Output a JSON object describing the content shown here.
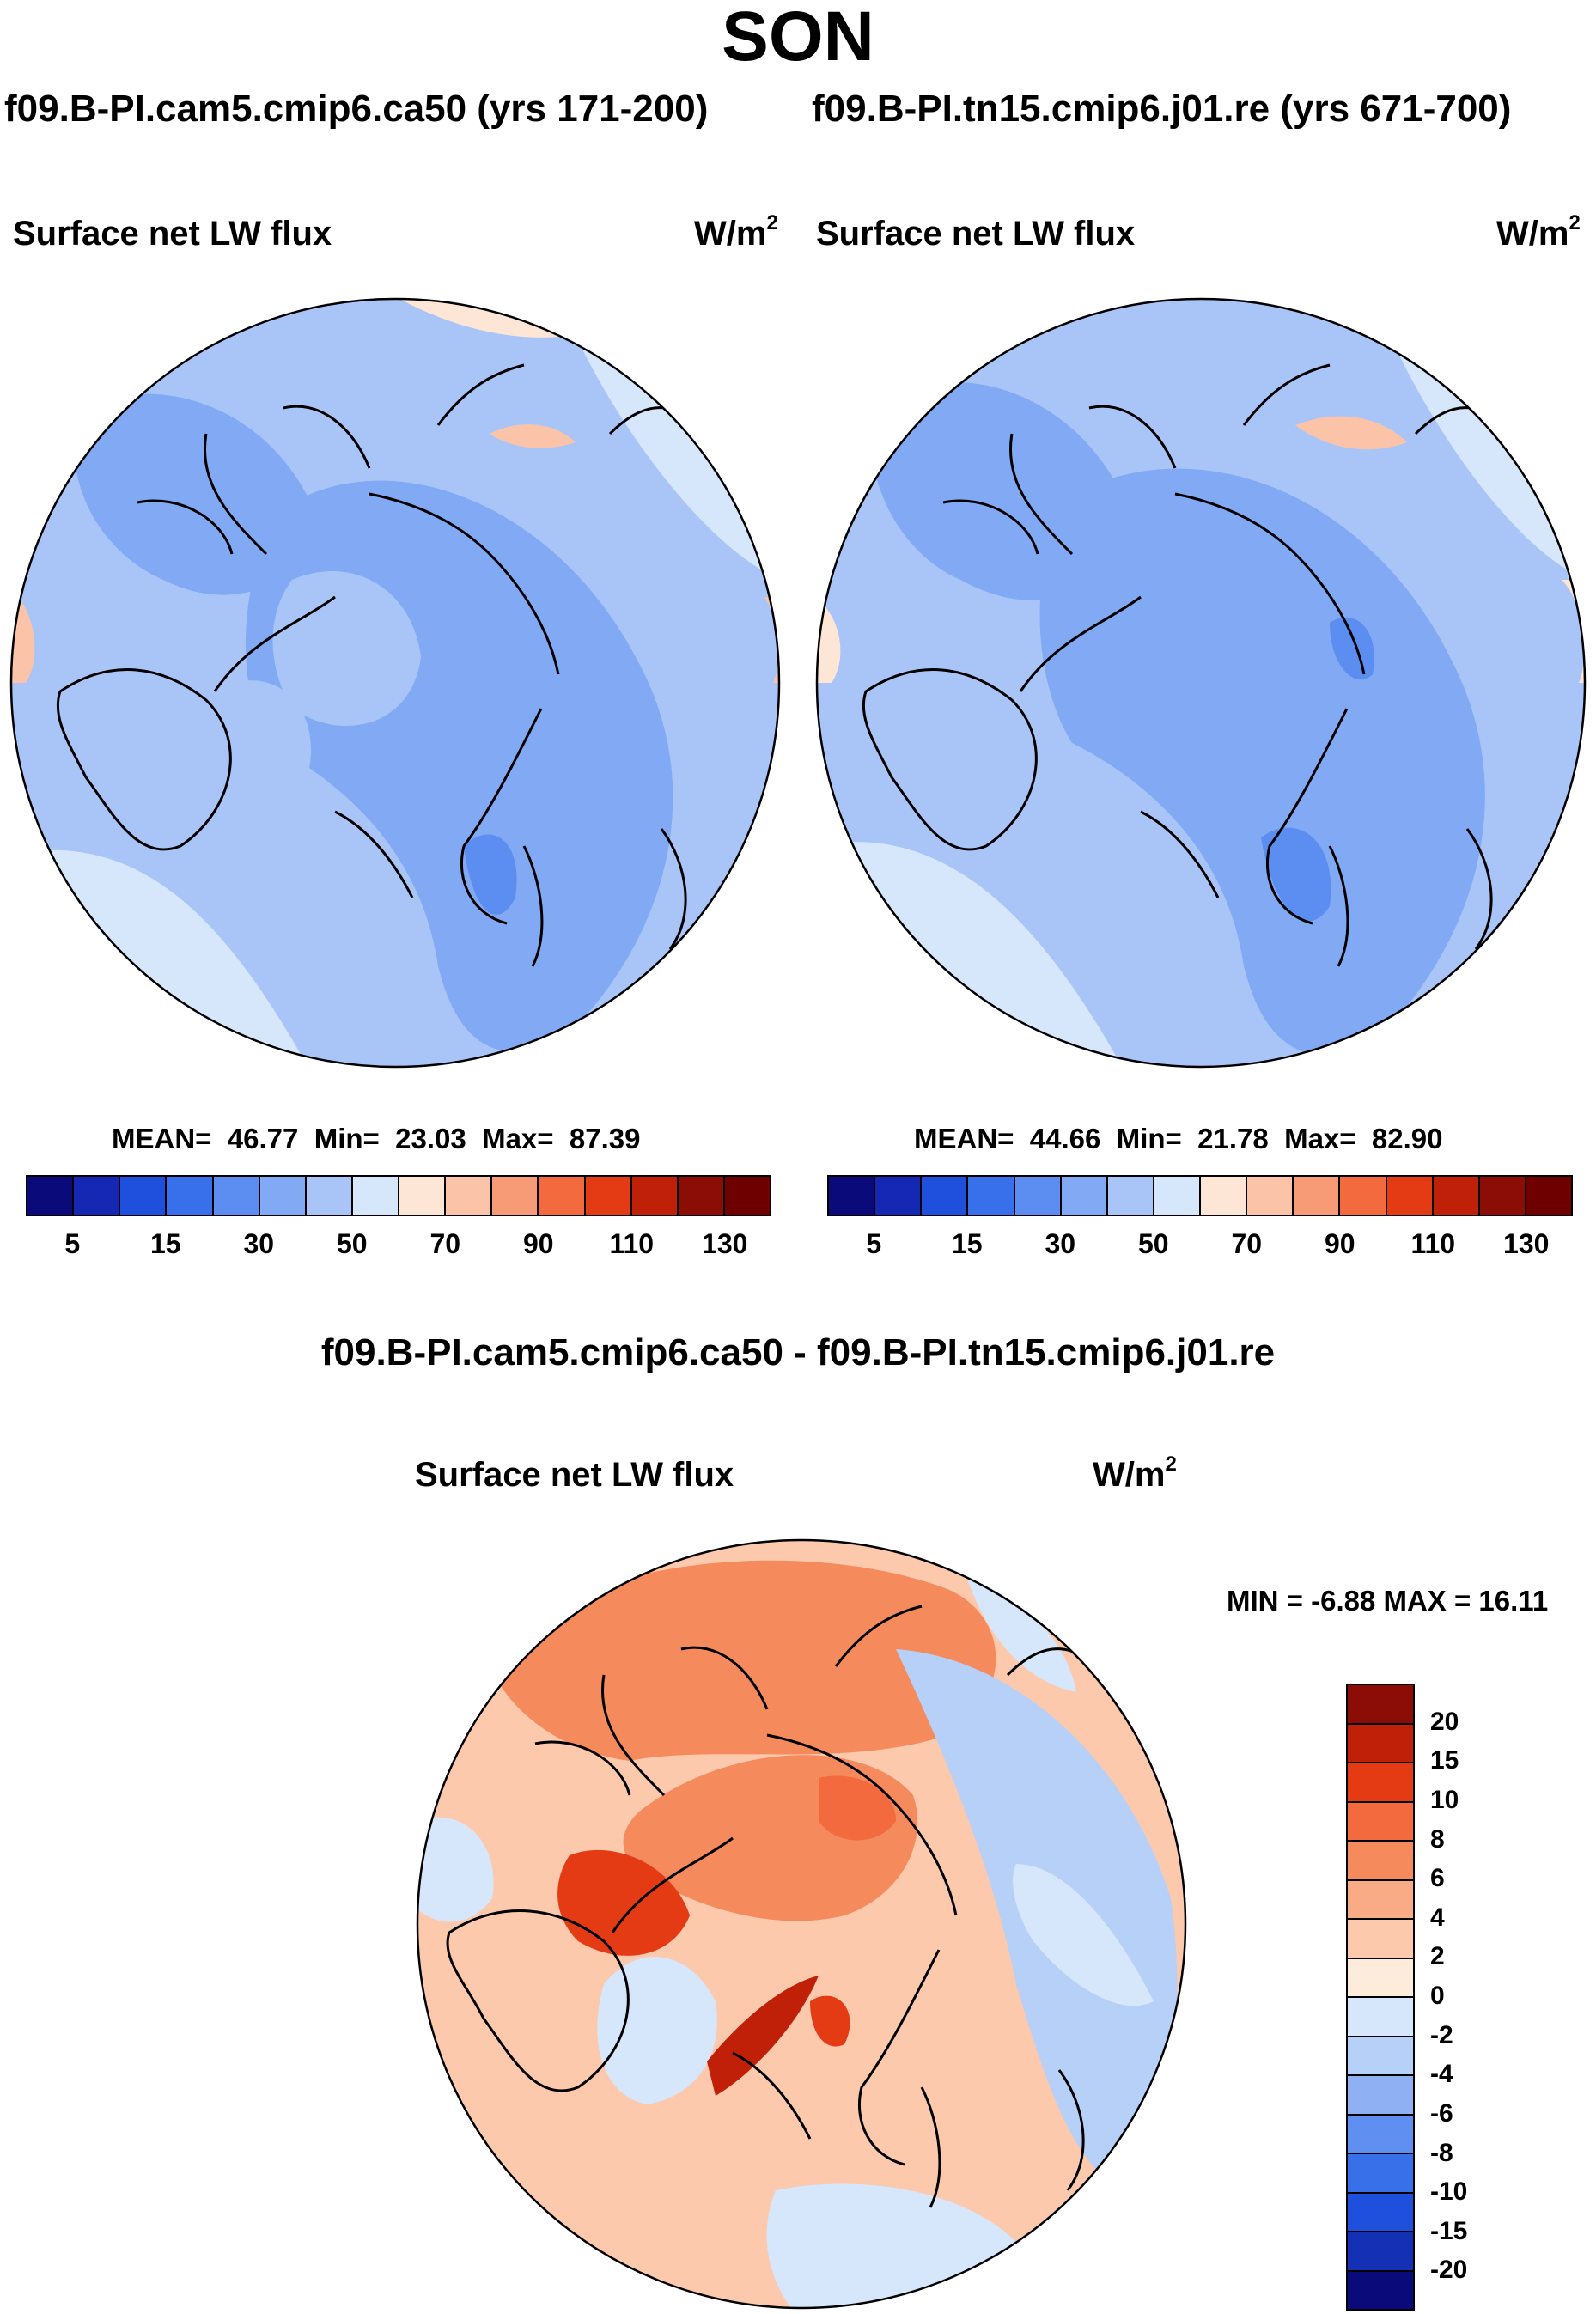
{
  "season": "SON",
  "cases": {
    "case1_label": "f09.B-PI.cam5.cmip6.ca50 (yrs 171-200)",
    "case2_label": "f09.B-PI.tn15.cmip6.j01.re (yrs 671-700)"
  },
  "chart_data": [
    {
      "type": "heatmap",
      "projection": "north polar stereographic",
      "title": "Surface net LW flux",
      "units": "W/m",
      "units_exp": "2",
      "case": "f09.B-PI.cam5.cmip6.ca50 (yrs 171-200)",
      "mean_label": "MEAN=",
      "mean": "46.77",
      "min_label": "Min=",
      "min": "23.03",
      "max_label": "Max=",
      "max": "87.39",
      "levels": [
        5,
        10,
        15,
        20,
        30,
        40,
        50,
        60,
        70,
        80,
        90,
        100,
        110,
        120,
        130
      ],
      "tick_labels": [
        "5",
        "15",
        "30",
        "50",
        "70",
        "90",
        "110",
        "130"
      ],
      "colors": [
        "#0a0a7a",
        "#1428b4",
        "#1f4fdd",
        "#3770ea",
        "#5b8ef0",
        "#81a9f4",
        "#a9c5f8",
        "#d6e6fb",
        "#fde6d6",
        "#fbc4a8",
        "#f79b76",
        "#f26a3e",
        "#e43b14",
        "#c02008",
        "#8c0c06",
        "#6e0000"
      ]
    },
    {
      "type": "heatmap",
      "projection": "north polar stereographic",
      "title": "Surface net LW flux",
      "units": "W/m",
      "units_exp": "2",
      "case": "f09.B-PI.tn15.cmip6.j01.re (yrs 671-700)",
      "mean_label": "MEAN=",
      "mean": "44.66",
      "min_label": "Min=",
      "min": "21.78",
      "max_label": "Max=",
      "max": "82.90",
      "levels": [
        5,
        10,
        15,
        20,
        30,
        40,
        50,
        60,
        70,
        80,
        90,
        100,
        110,
        120,
        130
      ],
      "tick_labels": [
        "5",
        "15",
        "30",
        "50",
        "70",
        "90",
        "110",
        "130"
      ],
      "colors": [
        "#0a0a7a",
        "#1428b4",
        "#1f4fdd",
        "#3770ea",
        "#5b8ef0",
        "#81a9f4",
        "#a9c5f8",
        "#d6e6fb",
        "#fde6d6",
        "#fbc4a8",
        "#f79b76",
        "#f26a3e",
        "#e43b14",
        "#c02008",
        "#8c0c06",
        "#6e0000"
      ]
    },
    {
      "type": "heatmap",
      "projection": "north polar stereographic",
      "suptitle": "f09.B-PI.cam5.cmip6.ca50 - f09.B-PI.tn15.cmip6.j01.re",
      "title": "Surface net LW flux",
      "units": "W/m",
      "units_exp": "2",
      "minmax_text": "MIN =  -6.88 MAX =  16.11",
      "min": -6.88,
      "max": 16.11,
      "levels": [
        20,
        15,
        10,
        8,
        6,
        4,
        2,
        0,
        -2,
        -4,
        -6,
        -8,
        -10,
        -15,
        -20
      ],
      "tick_labels": [
        "20",
        "15",
        "10",
        "8",
        "6",
        "4",
        "2",
        "0",
        "-2",
        "-4",
        "-6",
        "-8",
        "-10",
        "-15",
        "-20"
      ],
      "colors": [
        "#8c0c06",
        "#c02008",
        "#e43b14",
        "#f26a3e",
        "#f58a5c",
        "#f9ab85",
        "#fcc9ad",
        "#fdebdc",
        "#d6e6fb",
        "#b6d0f8",
        "#8fb1f3",
        "#5f8ff0",
        "#3870ea",
        "#1f4fdd",
        "#1430b4",
        "#0a0a7a"
      ]
    }
  ]
}
